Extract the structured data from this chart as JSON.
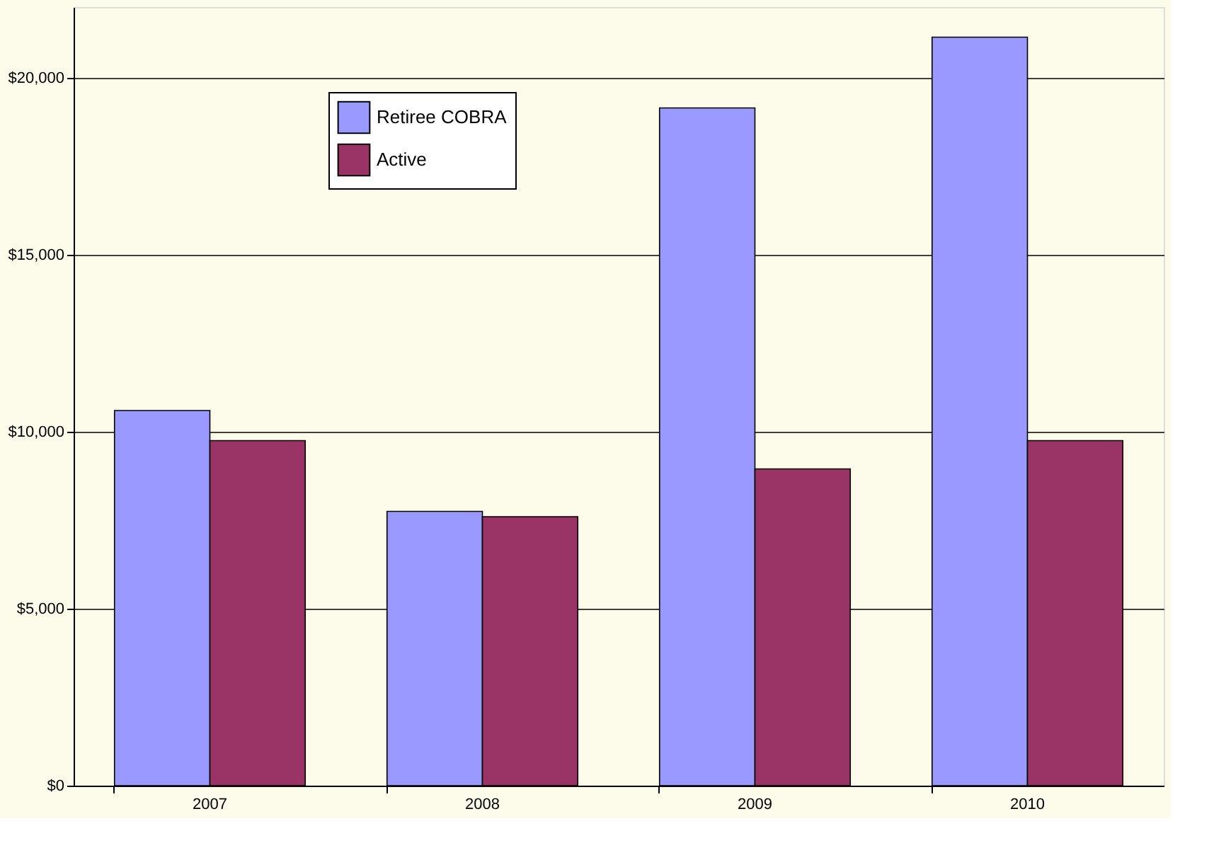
{
  "chart_data": {
    "type": "bar",
    "categories": [
      "2007",
      "2008",
      "2009",
      "2010"
    ],
    "series": [
      {
        "name": "Retiree COBRA",
        "color": "#9999ff",
        "values": [
          10600,
          7750,
          19150,
          21150
        ]
      },
      {
        "name": "Active",
        "color": "#993366",
        "values": [
          9750,
          7600,
          8950,
          9750
        ]
      }
    ],
    "ylim": [
      0,
      22000
    ],
    "yticks": [
      {
        "value": 0,
        "label": "$0"
      },
      {
        "value": 5000,
        "label": "$5,000"
      },
      {
        "value": 10000,
        "label": "$10,000"
      },
      {
        "value": 15000,
        "label": "$15,000"
      },
      {
        "value": 20000,
        "label": "$20,000"
      }
    ],
    "grid": "y",
    "legend": "top left"
  }
}
